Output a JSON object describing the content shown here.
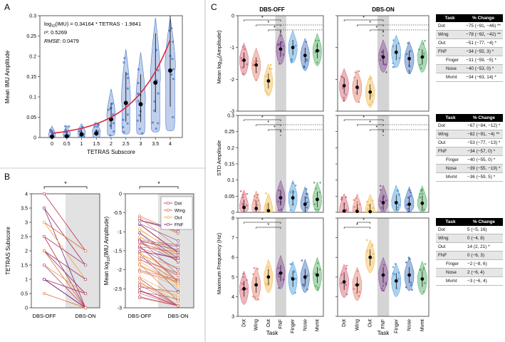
{
  "panelA": {
    "label": "A",
    "chart_data": {
      "type": "violin+scatter",
      "xlabel": "TETRAS Subscore",
      "ylabel": "Mean IMU Amplitude",
      "categories": [
        "0",
        "0.5",
        "1",
        "1.5",
        "2",
        "2.5",
        "3",
        "3.5",
        "4"
      ],
      "x": [
        0,
        0.5,
        1,
        1.5,
        2,
        2.5,
        3,
        3.5,
        4
      ],
      "medians": [
        0.002,
        0.003,
        0.008,
        0.01,
        0.045,
        0.085,
        0.082,
        0.135,
        0.165
      ],
      "ylim": [
        0,
        0.3
      ],
      "yticks": [
        "0",
        "0.05",
        "0.1",
        "0.15",
        "0.2",
        "0.25",
        "0.3"
      ],
      "fit": {
        "slope": 0.34164,
        "intercept": -1.9841
      }
    },
    "eq_line": "log10(IMU) = 0.34164 * TETRAS - 1.9841",
    "r2_label": "r²: 0.5269",
    "rmse_label": "RMSE",
    "rmse_value": ": 0.0479",
    "fit_color": "#e0283c",
    "violin_color": "#4a78c8"
  },
  "panelB": {
    "label": "B",
    "sig": "*",
    "left": {
      "ylabel": "TETRAS Subscore",
      "groups": [
        "DBS-OFF",
        "DBS-ON"
      ],
      "ylim": [
        0,
        4
      ],
      "yticks": [
        "0",
        "0.5",
        "1",
        "1.5",
        "2",
        "2.5",
        "3",
        "3.5",
        "4"
      ],
      "pairs": [
        [
          4,
          2
        ],
        [
          3.5,
          1.5
        ],
        [
          3.5,
          0
        ],
        [
          3,
          2
        ],
        [
          3,
          1
        ],
        [
          2.5,
          1.5
        ],
        [
          2.5,
          0
        ],
        [
          2,
          1
        ],
        [
          2,
          0.5
        ],
        [
          2,
          0
        ],
        [
          1.5,
          0.5
        ],
        [
          1.5,
          0
        ],
        [
          1,
          0
        ],
        [
          1,
          0.5
        ],
        [
          1,
          0
        ],
        [
          0.5,
          0
        ]
      ]
    },
    "right": {
      "ylabel": "Mean log10(IMU Amplitude)",
      "groups": [
        "DBS-OFF",
        "DBS-ON"
      ],
      "ylim": [
        -3,
        0
      ],
      "yticks": [
        "-3",
        "-2.5",
        "-2",
        "-1.5",
        "-1",
        "-0.5",
        "0"
      ],
      "legend": [
        "Dot",
        "Wing",
        "Out",
        "FNF"
      ],
      "colors": {
        "Dot": "#c44a6a",
        "Wing": "#d9664a",
        "Out": "#f0a53a",
        "FNF": "#7a3a8a"
      }
    }
  },
  "panelC": {
    "label": "C",
    "xlabel": "Task",
    "conditions": [
      "DBS-OFF",
      "DBS-ON"
    ],
    "tasks": [
      "Dot",
      "Wing",
      "Out",
      "FNF",
      "Finger",
      "Nose",
      "Mvmt"
    ],
    "task_colors": [
      "#d05a6e",
      "#e07c6a",
      "#f2b84a",
      "#8a4a9a",
      "#4a9ad8",
      "#3a6ab8",
      "#4aa85a"
    ],
    "rows": [
      {
        "ylabel": "Mean log10(Amplitude)",
        "ylim": [
          -3,
          0
        ],
        "yticks": [
          "0",
          "-1",
          "-2",
          "-3"
        ],
        "off_medians": [
          -1.4,
          -1.55,
          -2.05,
          -1.05,
          -1.0,
          -1.25,
          -1.1
        ],
        "on_medians": [
          -2.2,
          -2.25,
          -2.4,
          -1.3,
          -1.15,
          -1.35,
          -1.3
        ],
        "sig": "*"
      },
      {
        "ylabel": "STD Amplitude",
        "ylim": [
          0,
          0.3
        ],
        "yticks": [
          "0",
          "0.05",
          "0.1",
          "0.15",
          "0.2",
          "0.25",
          "0.3"
        ],
        "off_medians": [
          0.015,
          0.012,
          0.005,
          0.045,
          0.045,
          0.025,
          0.04
        ],
        "on_medians": [
          0.004,
          0.003,
          0.002,
          0.03,
          0.03,
          0.025,
          0.028
        ],
        "sig": "*"
      },
      {
        "ylabel": "Maximum Frequency (Hz)",
        "ylim": [
          3,
          8
        ],
        "yticks": [
          "3",
          "4",
          "5",
          "6",
          "7",
          "8"
        ],
        "off_medians": [
          4.4,
          4.6,
          5.0,
          5.2,
          4.9,
          5.0,
          5.1
        ],
        "on_medians": [
          4.75,
          4.6,
          6.0,
          5.1,
          4.8,
          5.1,
          4.9
        ],
        "sig": "*"
      }
    ]
  },
  "tables": {
    "header_task": "Task",
    "header_change": "% Change",
    "t1": [
      {
        "task": "Dot",
        "change": "−75 (−91, −46) **",
        "indent": false
      },
      {
        "task": "Wing",
        "change": "−78 (−92, −42) **",
        "indent": false
      },
      {
        "task": "Out",
        "change": "−51 (−77, −4) *",
        "indent": false
      },
      {
        "task": "FNF",
        "change": "−34 (−55, 3) *",
        "indent": false
      },
      {
        "task": "Finger",
        "change": "−31 (−59, −5) *",
        "indent": true
      },
      {
        "task": "Nose",
        "change": "−40 (−53, 0) *",
        "indent": true
      },
      {
        "task": "Mvmt",
        "change": "−34 (−63, 14) *",
        "indent": true
      }
    ],
    "t2": [
      {
        "task": "Dot",
        "change": "−67 (−84, −12) *",
        "indent": false
      },
      {
        "task": "Wing",
        "change": "−82 (−91, −4) **",
        "indent": false
      },
      {
        "task": "Out",
        "change": "−53 (−77, −13) *",
        "indent": false
      },
      {
        "task": "FNF",
        "change": "−34 (−57, 0) *",
        "indent": false
      },
      {
        "task": "Finger",
        "change": "−40 (−55, 0) *",
        "indent": true
      },
      {
        "task": "Nose",
        "change": "−39 (−55, −19) *",
        "indent": true
      },
      {
        "task": "Mvmt",
        "change": "−36 (−59, 5) *",
        "indent": true
      }
    ],
    "t3": [
      {
        "task": "Dot",
        "change": "5 (−5, 16)",
        "indent": false
      },
      {
        "task": "Wing",
        "change": "0 (−4, 8)",
        "indent": false
      },
      {
        "task": "Out",
        "change": "14 (2, 21) *",
        "indent": false
      },
      {
        "task": "FNF",
        "change": "0 (−6, 3)",
        "indent": false
      },
      {
        "task": "Finger",
        "change": "−2 (−8, 6)",
        "indent": true
      },
      {
        "task": "Nose",
        "change": "2 (−6, 4)",
        "indent": true
      },
      {
        "task": "Mvmt",
        "change": "−3 (−6, 4)",
        "indent": true
      }
    ]
  }
}
